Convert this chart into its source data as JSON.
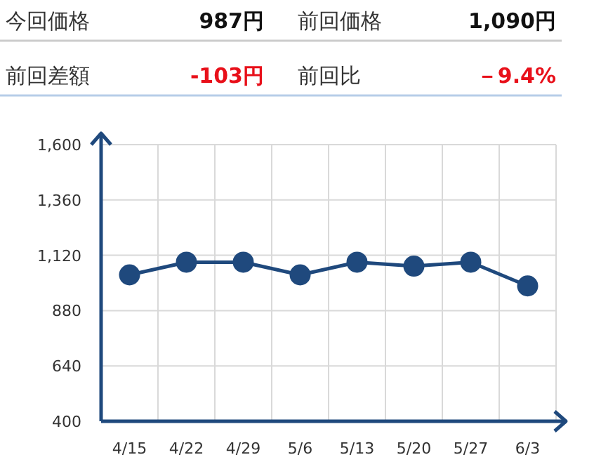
{
  "chart_data": [
    {
      "type": "other",
      "annotations": [
        "今回価格",
        "987円",
        "前回価格",
        "1,090円",
        "前回差額",
        "-103円",
        "前回比",
        "－9.4%"
      ]
    },
    {
      "type": "line",
      "categories": [
        "4/15",
        "4/22",
        "4/29",
        "5/6",
        "5/13",
        "5/20",
        "5/27",
        "6/3"
      ],
      "series": [
        {
          "color": "#1f497d",
          "values": [
            1035,
            1090,
            1090,
            1035,
            1090,
            1073,
            1090,
            987
          ]
        }
      ],
      "ylim": [
        400,
        1600
      ],
      "yticks": [
        400,
        {
          "value": 640,
          "label": "640"
        },
        {
          "value": 880,
          "label": "880"
        },
        {
          "value": 1120,
          "label": "1,120"
        },
        {
          "value": 1360,
          "label": "1,360"
        },
        {
          "value": 1600,
          "label": "1,600"
        }
      ],
      "grid": true,
      "marker": "circle",
      "line_style": "solid"
    }
  ]
}
